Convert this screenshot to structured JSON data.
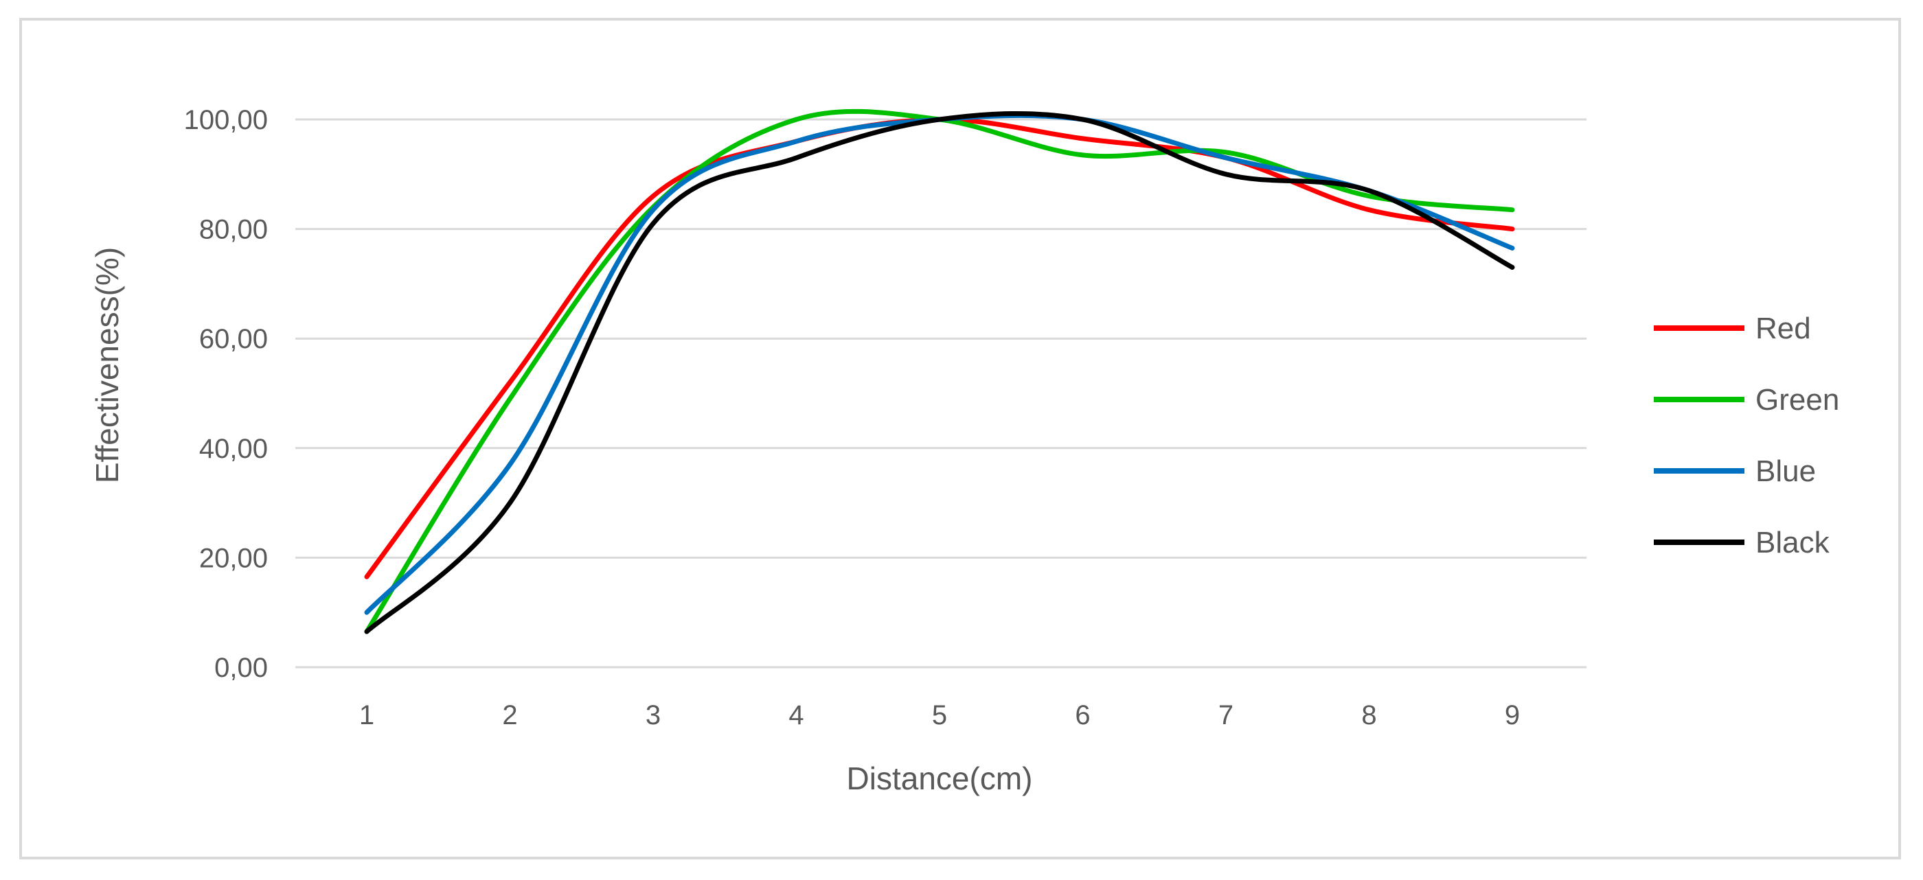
{
  "chart_data": {
    "type": "line",
    "title": "",
    "xlabel": "Distance(cm)",
    "ylabel": "Effectiveness(%)",
    "x": [
      1,
      2,
      3,
      4,
      5,
      6,
      7,
      8,
      9
    ],
    "x_tick_labels": [
      "1",
      "2",
      "3",
      "4",
      "5",
      "6",
      "7",
      "8",
      "9"
    ],
    "ylim": [
      0,
      100
    ],
    "y_ticks": [
      0,
      20,
      40,
      60,
      80,
      100
    ],
    "y_tick_labels": [
      "0,00",
      "20,00",
      "40,00",
      "60,00",
      "80,00",
      "100,00"
    ],
    "grid": "horizontal",
    "smooth": true,
    "legend": "right",
    "series": [
      {
        "name": "Red",
        "color": "#ff0000",
        "values": [
          16.5,
          52,
          86,
          96,
          100,
          96.5,
          93,
          83.5,
          80
        ]
      },
      {
        "name": "Green",
        "color": "#00c000",
        "values": [
          6.5,
          49,
          84,
          100,
          100,
          93.5,
          94,
          86,
          83.5
        ]
      },
      {
        "name": "Blue",
        "color": "#0070c0",
        "values": [
          10,
          37,
          83.5,
          96,
          100,
          100,
          93,
          87,
          76.5
        ]
      },
      {
        "name": "Black",
        "color": "#000000",
        "values": [
          6.5,
          30,
          81,
          93,
          100,
          100,
          90,
          87,
          73
        ]
      }
    ]
  }
}
